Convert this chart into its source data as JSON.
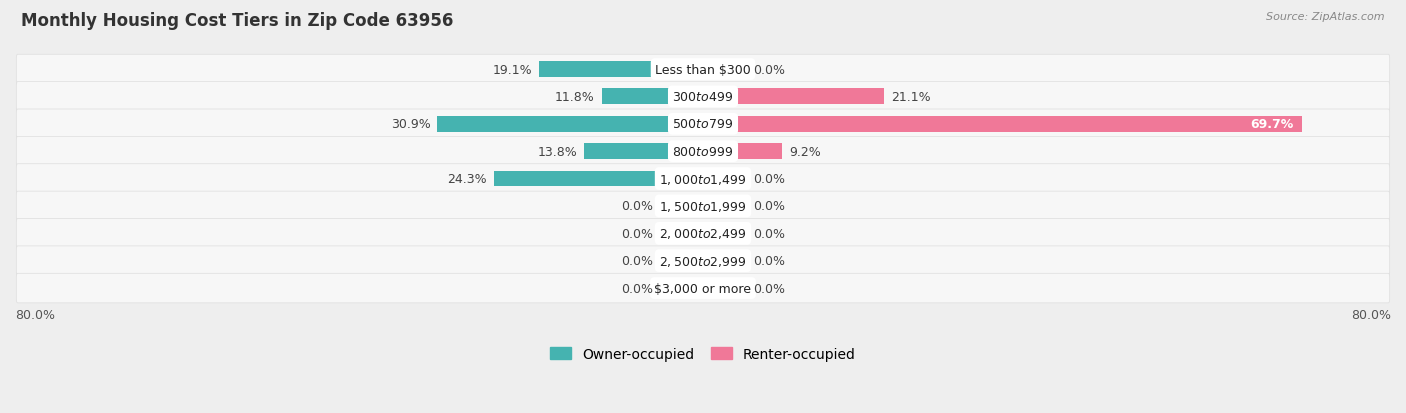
{
  "title": "Monthly Housing Cost Tiers in Zip Code 63956",
  "source": "Source: ZipAtlas.com",
  "categories": [
    "Less than $300",
    "$300 to $499",
    "$500 to $799",
    "$800 to $999",
    "$1,000 to $1,499",
    "$1,500 to $1,999",
    "$2,000 to $2,499",
    "$2,500 to $2,999",
    "$3,000 or more"
  ],
  "owner_values": [
    19.1,
    11.8,
    30.9,
    13.8,
    24.3,
    0.0,
    0.0,
    0.0,
    0.0
  ],
  "renter_values": [
    0.0,
    21.1,
    69.7,
    9.2,
    0.0,
    0.0,
    0.0,
    0.0,
    0.0
  ],
  "owner_color": "#45b3b0",
  "renter_color": "#f07898",
  "owner_color_zero": "#90d0d0",
  "renter_color_zero": "#f5b8c8",
  "label_color_dark": "#444444",
  "label_color_white": "#ffffff",
  "bg_color": "#eeeeee",
  "row_bg_color": "#f7f7f7",
  "row_border_color": "#dddddd",
  "axis_max": 80.0,
  "zero_stub": 5.0,
  "title_fontsize": 12,
  "label_fontsize": 9,
  "category_fontsize": 9,
  "source_fontsize": 8
}
